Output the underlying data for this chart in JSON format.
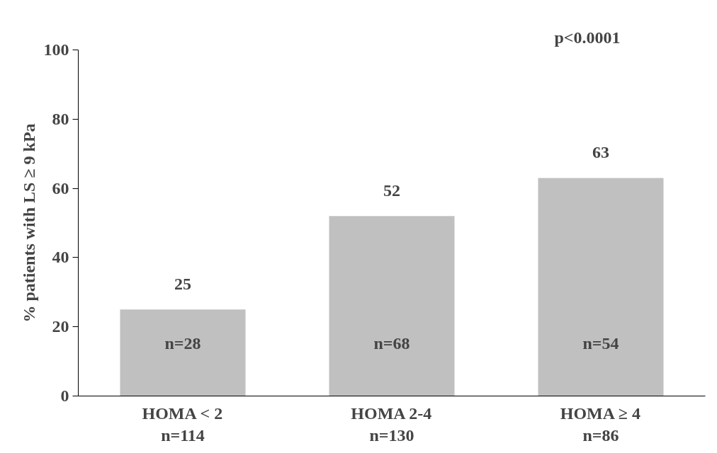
{
  "chart_data": {
    "type": "bar",
    "ylabel": "% patients with LS ≥ 9 kPa",
    "categories": [
      "HOMA < 2\nn=114",
      "HOMA 2-4\nn=130",
      "HOMA ≥ 4\nn=86"
    ],
    "values": [
      25,
      52,
      63
    ],
    "color": "#c0c0c0",
    "data_labels": true,
    "ylim": [
      0,
      100
    ],
    "yticks": [
      0,
      20,
      40,
      60,
      80,
      100
    ],
    "grid": false,
    "annotations": [
      "n=28",
      "n=68",
      "n=54",
      "p<0.0001"
    ]
  }
}
